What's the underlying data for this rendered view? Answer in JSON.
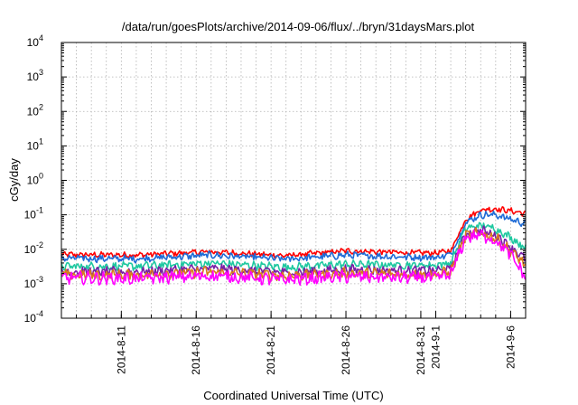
{
  "chart_data": {
    "type": "line",
    "title": "/data/run/goesPlots/archive/2014-09-06/flux/../bryn/31daysMars.plot",
    "xlabel": "Coordinated Universal Time (UTC)",
    "ylabel": "cGy/day",
    "yscale": "log",
    "ylim": [
      0.0001,
      10000
    ],
    "y_ticks": [
      {
        "base": "10",
        "exp": "-4",
        "value": 0.0001
      },
      {
        "base": "10",
        "exp": "-3",
        "value": 0.001
      },
      {
        "base": "10",
        "exp": "-2",
        "value": 0.01
      },
      {
        "base": "10",
        "exp": "-1",
        "value": 0.1
      },
      {
        "base": "10",
        "exp": "0",
        "value": 1
      },
      {
        "base": "10",
        "exp": "1",
        "value": 10
      },
      {
        "base": "10",
        "exp": "2",
        "value": 100
      },
      {
        "base": "10",
        "exp": "3",
        "value": 1000
      },
      {
        "base": "10",
        "exp": "4",
        "value": 10000
      }
    ],
    "xlim": [
      "2014-08-07",
      "2014-09-07"
    ],
    "x_ticks": [
      {
        "label": "2014-8-11",
        "date": "2014-08-11"
      },
      {
        "label": "2014-8-16",
        "date": "2014-08-16"
      },
      {
        "label": "2014-8-21",
        "date": "2014-08-21"
      },
      {
        "label": "2014-8-26",
        "date": "2014-08-26"
      },
      {
        "label": "2014-8-31",
        "date": "2014-08-31"
      },
      {
        "label": "2014-9-1",
        "date": "2014-09-01"
      },
      {
        "label": "2014-9-6",
        "date": "2014-09-06"
      }
    ],
    "grid": true,
    "series": [
      {
        "color": "#ff0000",
        "values": [
          [
            "2014-08-07",
            0.007
          ],
          [
            "2014-08-12",
            0.0068
          ],
          [
            "2014-08-17",
            0.0085
          ],
          [
            "2014-08-22",
            0.0065
          ],
          [
            "2014-08-26",
            0.009
          ],
          [
            "2014-08-30",
            0.008
          ],
          [
            "2014-09-01",
            0.0078
          ],
          [
            "2014-09-02",
            0.009
          ],
          [
            "2014-09-03",
            0.075
          ],
          [
            "2014-09-04",
            0.14
          ],
          [
            "2014-09-05",
            0.15
          ],
          [
            "2014-09-06",
            0.13
          ],
          [
            "2014-09-07",
            0.11
          ]
        ]
      },
      {
        "color": "#1e6bd6",
        "values": [
          [
            "2014-08-07",
            0.0055
          ],
          [
            "2014-08-12",
            0.0053
          ],
          [
            "2014-08-17",
            0.0068
          ],
          [
            "2014-08-22",
            0.0052
          ],
          [
            "2014-08-26",
            0.0068
          ],
          [
            "2014-08-30",
            0.006
          ],
          [
            "2014-09-01",
            0.0058
          ],
          [
            "2014-09-02",
            0.007
          ],
          [
            "2014-09-03",
            0.06
          ],
          [
            "2014-09-04",
            0.1
          ],
          [
            "2014-09-05",
            0.1
          ],
          [
            "2014-09-06",
            0.075
          ],
          [
            "2014-09-07",
            0.055
          ]
        ]
      },
      {
        "color": "#1ec8a0",
        "values": [
          [
            "2014-08-07",
            0.0032
          ],
          [
            "2014-08-12",
            0.0032
          ],
          [
            "2014-08-17",
            0.004
          ],
          [
            "2014-08-22",
            0.003
          ],
          [
            "2014-08-26",
            0.0037
          ],
          [
            "2014-08-30",
            0.0035
          ],
          [
            "2014-09-01",
            0.0035
          ],
          [
            "2014-09-02",
            0.004
          ],
          [
            "2014-09-03",
            0.04
          ],
          [
            "2014-09-04",
            0.05
          ],
          [
            "2014-09-05",
            0.04
          ],
          [
            "2014-09-06",
            0.022
          ],
          [
            "2014-09-07",
            0.011
          ]
        ]
      },
      {
        "color": "#7a1fa6",
        "values": [
          [
            "2014-08-07",
            0.0023
          ],
          [
            "2014-08-12",
            0.0022
          ],
          [
            "2014-08-17",
            0.0028
          ],
          [
            "2014-08-22",
            0.0021
          ],
          [
            "2014-08-26",
            0.0026
          ],
          [
            "2014-08-30",
            0.0024
          ],
          [
            "2014-09-01",
            0.0024
          ],
          [
            "2014-09-02",
            0.0028
          ],
          [
            "2014-09-03",
            0.028
          ],
          [
            "2014-09-04",
            0.035
          ],
          [
            "2014-09-05",
            0.026
          ],
          [
            "2014-09-06",
            0.012
          ],
          [
            "2014-09-07",
            0.005
          ]
        ]
      },
      {
        "color": "#d97a1a",
        "values": [
          [
            "2014-08-07",
            0.0018
          ],
          [
            "2014-08-12",
            0.0018
          ],
          [
            "2014-08-17",
            0.0022
          ],
          [
            "2014-08-22",
            0.0017
          ],
          [
            "2014-08-26",
            0.002
          ],
          [
            "2014-08-30",
            0.0019
          ],
          [
            "2014-09-01",
            0.0019
          ],
          [
            "2014-09-02",
            0.0022
          ],
          [
            "2014-09-03",
            0.025
          ],
          [
            "2014-09-04",
            0.03
          ],
          [
            "2014-09-05",
            0.021
          ],
          [
            "2014-09-06",
            0.009
          ],
          [
            "2014-09-07",
            0.0035
          ]
        ]
      },
      {
        "color": "#ff00ff",
        "values": [
          [
            "2014-08-07",
            0.0015
          ],
          [
            "2014-08-12",
            0.0014
          ],
          [
            "2014-08-17",
            0.0017
          ],
          [
            "2014-08-22",
            0.0013
          ],
          [
            "2014-08-26",
            0.0016
          ],
          [
            "2014-08-30",
            0.0015
          ],
          [
            "2014-09-01",
            0.0015
          ],
          [
            "2014-09-02",
            0.0018
          ],
          [
            "2014-09-03",
            0.022
          ],
          [
            "2014-09-04",
            0.026
          ],
          [
            "2014-09-05",
            0.018
          ],
          [
            "2014-09-06",
            0.007
          ],
          [
            "2014-09-07",
            0.0015
          ]
        ]
      }
    ]
  }
}
